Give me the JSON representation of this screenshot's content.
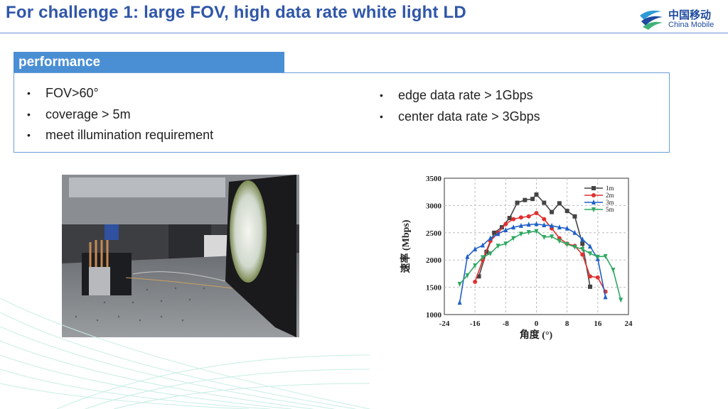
{
  "header": {
    "title": "For challenge 1:  large FOV, high data rate white light LD",
    "logo_cn": "中国移动",
    "logo_en": "China Mobile"
  },
  "performance": {
    "label": "performance",
    "left_items": [
      "FOV>60°",
      "coverage > 5m",
      "meet illumination requirement"
    ],
    "right_items": [
      "edge data rate > 1Gbps",
      "center data rate > 3Gbps"
    ]
  },
  "colors": {
    "title": "#2f56a8",
    "accent": "#4a8fd4",
    "logo": "#1e4aa0"
  },
  "chart_data": {
    "type": "line",
    "xlabel": "角度 (°)",
    "ylabel": "速率 (Mbps)",
    "xlim": [
      -24,
      24
    ],
    "ylim": [
      1000,
      3500
    ],
    "xticks": [
      -24,
      -16,
      -8,
      0,
      8,
      16,
      24
    ],
    "yticks": [
      1000,
      1500,
      2000,
      2500,
      3000,
      3500
    ],
    "grid": true,
    "legend_position": "top-right",
    "series": [
      {
        "name": "1m",
        "color": "#444444",
        "marker": "square",
        "x": [
          -15,
          -13,
          -11,
          -9,
          -7,
          -5,
          -3,
          -1,
          0,
          2,
          4,
          6,
          8,
          10,
          12,
          14
        ],
        "y": [
          1700,
          2150,
          2500,
          2600,
          2770,
          3050,
          3100,
          3120,
          3200,
          3050,
          2880,
          3040,
          2900,
          2800,
          2300,
          1510
        ]
      },
      {
        "name": "2m",
        "color": "#e03030",
        "marker": "circle",
        "x": [
          -16,
          -14,
          -12,
          -10,
          -8,
          -6,
          -4,
          -2,
          0,
          2,
          4,
          6,
          8,
          10,
          12,
          14,
          16,
          18
        ],
        "y": [
          1600,
          2000,
          2350,
          2500,
          2660,
          2750,
          2780,
          2800,
          2860,
          2750,
          2580,
          2400,
          2300,
          2260,
          2100,
          1700,
          1680,
          1420
        ]
      },
      {
        "name": "3m",
        "color": "#1f60c8",
        "marker": "triangle-up",
        "x": [
          -20,
          -18,
          -16,
          -14,
          -12,
          -10,
          -8,
          -6,
          -4,
          -2,
          0,
          2,
          4,
          6,
          8,
          10,
          12,
          14,
          16,
          18
        ],
        "y": [
          1220,
          2060,
          2200,
          2270,
          2400,
          2480,
          2550,
          2600,
          2630,
          2650,
          2660,
          2640,
          2630,
          2600,
          2580,
          2500,
          2380,
          2250,
          2020,
          1320
        ]
      },
      {
        "name": "5m",
        "color": "#2fa860",
        "marker": "triangle-down",
        "x": [
          -20,
          -18,
          -16,
          -14,
          -12,
          -10,
          -8,
          -6,
          -4,
          -2,
          0,
          2,
          4,
          6,
          8,
          10,
          12,
          14,
          16,
          18,
          20,
          22
        ],
        "y": [
          1560,
          1720,
          1900,
          2050,
          2120,
          2260,
          2300,
          2400,
          2480,
          2510,
          2530,
          2420,
          2430,
          2350,
          2290,
          2240,
          2200,
          2120,
          2060,
          2070,
          1820,
          1270
        ]
      }
    ]
  }
}
